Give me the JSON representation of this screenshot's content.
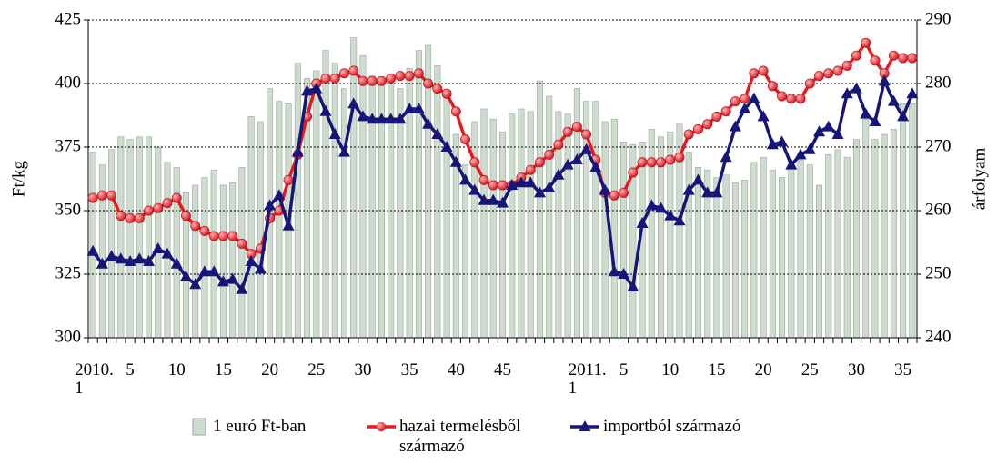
{
  "chart_data": {
    "type": "bar-line",
    "y_label": "Ft/kg",
    "y2_label": "árfolyam",
    "categories": [
      "2010.\n1",
      null,
      null,
      null,
      "5",
      null,
      null,
      null,
      null,
      "10",
      null,
      null,
      null,
      null,
      "15",
      null,
      null,
      null,
      null,
      "20",
      null,
      null,
      null,
      null,
      "25",
      null,
      null,
      null,
      null,
      "30",
      null,
      null,
      null,
      null,
      "35",
      null,
      null,
      null,
      null,
      "40",
      null,
      null,
      null,
      null,
      "45",
      null,
      null,
      null,
      null,
      null,
      null,
      null,
      null,
      "2011.\n1",
      null,
      null,
      null,
      "5",
      null,
      null,
      null,
      null,
      "10",
      null,
      null,
      null,
      null,
      "15",
      null,
      null,
      null,
      null,
      "20",
      null,
      null,
      null,
      null,
      "25",
      null,
      null,
      null,
      null,
      "30",
      null,
      null,
      null,
      null,
      "35",
      null
    ],
    "ylim": [
      300,
      425
    ],
    "yticks": [
      300,
      325,
      350,
      375,
      400,
      425
    ],
    "y2lim": [
      240,
      290
    ],
    "y2ticks": [
      240,
      250,
      260,
      270,
      280,
      290
    ],
    "grid": true,
    "legend": "bottom",
    "series": [
      {
        "name": "1 euró Ft-ban",
        "type": "bar",
        "axis": "y2",
        "color": "#cddccd",
        "values": [
          269.2,
          267.2,
          269.6,
          271.6,
          271.2,
          271.6,
          271.6,
          270,
          267.6,
          266.8,
          262.8,
          264,
          265.2,
          266.4,
          264,
          264.4,
          266.8,
          274.8,
          274,
          279.2,
          277.2,
          276.8,
          283.2,
          280.8,
          282,
          285.2,
          283.2,
          279.2,
          287.2,
          284.4,
          281.2,
          280.8,
          280,
          279.2,
          282.4,
          285.2,
          286,
          282.8,
          278.8,
          272,
          267.2,
          274,
          276,
          274.4,
          272.4,
          275.2,
          276,
          275.6,
          280.4,
          278,
          275.6,
          275.2,
          279.2,
          277.2,
          277.2,
          274,
          274.4,
          270.8,
          270.4,
          270.8,
          272.8,
          271.6,
          272.4,
          273.6,
          269.2,
          266.8,
          266.4,
          265.2,
          265.6,
          264.4,
          264.8,
          267.6,
          268.4,
          266.4,
          265.2,
          266.8,
          268,
          267.2,
          264,
          268.8,
          269.6,
          268.4,
          271.2,
          274.4,
          271.2,
          272,
          272.8,
          276.8,
          276.8
        ]
      },
      {
        "name": "hazai termelésből származó",
        "type": "line",
        "color": "#e8191c",
        "values": [
          355,
          356,
          356,
          348,
          347,
          347,
          350,
          351,
          353,
          355,
          348,
          344,
          342,
          340,
          340,
          340,
          337,
          333,
          335,
          347,
          350,
          362,
          372,
          387,
          400,
          402,
          402,
          404,
          405,
          401,
          401,
          401,
          402,
          403,
          403,
          404,
          400,
          398,
          396,
          389,
          378,
          369,
          362,
          360,
          360,
          360,
          363,
          366,
          369,
          372,
          376,
          381,
          383,
          380,
          370,
          357,
          356,
          357,
          365,
          369,
          369,
          369,
          370,
          371,
          380,
          382,
          384,
          387,
          389,
          393,
          394,
          404,
          405,
          399,
          395,
          394,
          394,
          400,
          403,
          404,
          405,
          407,
          411,
          416,
          409,
          404,
          411,
          410,
          410
        ]
      },
      {
        "name": "importból származó",
        "type": "line",
        "color": "#16167a",
        "values": [
          334,
          329,
          332,
          331,
          330,
          331,
          330,
          335,
          333,
          329,
          324,
          321,
          326,
          326,
          322,
          323,
          319,
          330,
          327,
          352,
          356,
          344,
          373,
          397,
          398,
          389,
          380,
          373,
          392,
          387,
          386,
          386,
          386,
          386,
          390,
          390,
          384,
          380,
          375,
          369,
          362,
          358,
          354,
          354,
          353,
          360,
          361,
          361,
          357,
          359,
          364,
          368,
          370,
          374,
          367,
          358,
          326,
          325,
          320,
          345,
          352,
          351,
          348,
          346,
          358,
          362,
          357,
          357,
          371,
          383,
          390,
          394,
          387,
          376,
          377,
          368,
          372,
          374,
          381,
          383,
          380,
          396,
          398,
          388,
          385,
          401,
          393,
          387,
          396
        ]
      }
    ]
  }
}
